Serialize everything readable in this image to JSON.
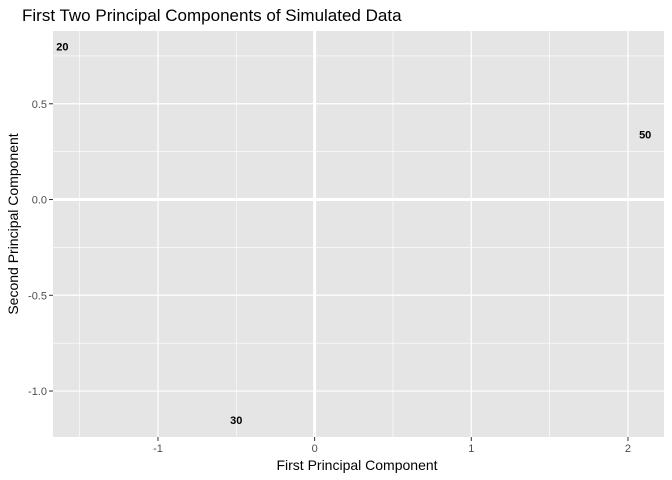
{
  "chart_data": {
    "type": "scatter",
    "title": "First Two Principal Components of Simulated Data",
    "xlabel": "First Principal Component",
    "ylabel": "Second Principal Component",
    "xlim": [
      -1.67,
      2.23
    ],
    "ylim": [
      -1.24,
      0.88
    ],
    "x_ticks": [
      -1,
      0,
      1,
      2
    ],
    "x_tick_labels": [
      "-1",
      "0",
      "1",
      "2"
    ],
    "y_ticks": [
      -1.0,
      -0.5,
      0.0,
      0.5
    ],
    "y_tick_labels": [
      "-1.0",
      "-0.5",
      "0.0",
      "0.5"
    ],
    "grid": true,
    "marker": "text-labels",
    "points": [
      {
        "label": "20",
        "x": -1.61,
        "y": 0.8
      },
      {
        "label": "50",
        "x": 2.11,
        "y": 0.34
      },
      {
        "label": "30",
        "x": -0.5,
        "y": -1.15
      }
    ],
    "colors": {
      "panel_background": "#e5e5e5",
      "gridline": "#ffffff",
      "text": "#000000",
      "tick_text": "#4d4d4d"
    }
  }
}
